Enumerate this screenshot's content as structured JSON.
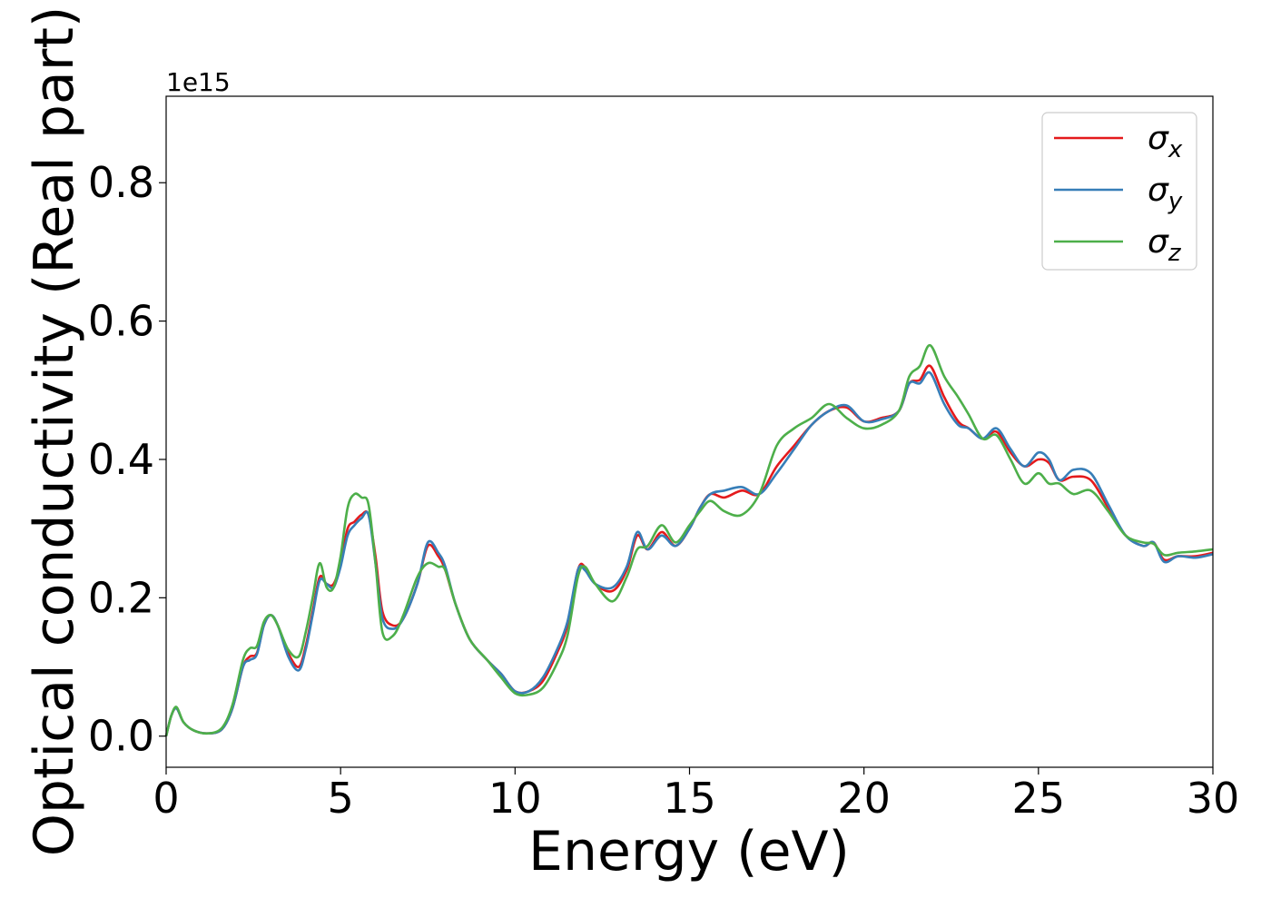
{
  "chart_data": {
    "type": "line",
    "title": "",
    "xlabel": "Energy (eV)",
    "ylabel": "Optical conductivity (Real part)",
    "y_offset_label": "1e15",
    "xlim": [
      0,
      30
    ],
    "ylim": [
      -0.045,
      0.925
    ],
    "x_ticks": [
      0,
      5,
      10,
      15,
      20,
      25,
      30
    ],
    "x_tick_labels": [
      "0",
      "5",
      "10",
      "15",
      "20",
      "25",
      "30"
    ],
    "y_ticks": [
      0.0,
      0.2,
      0.4,
      0.6,
      0.8
    ],
    "y_tick_labels": [
      "0.0",
      "0.2",
      "0.4",
      "0.6",
      "0.8"
    ],
    "grid": false,
    "legend": "top-right",
    "series": [
      {
        "name": "σx",
        "symbol": "σ",
        "subscript": "x",
        "color": "#e41a1c",
        "points": [
          [
            0,
            0
          ],
          [
            0.15,
            0.03
          ],
          [
            0.3,
            0.04
          ],
          [
            0.5,
            0.02
          ],
          [
            0.8,
            0.008
          ],
          [
            1.2,
            0.004
          ],
          [
            1.6,
            0.01
          ],
          [
            1.9,
            0.04
          ],
          [
            2.2,
            0.1
          ],
          [
            2.4,
            0.115
          ],
          [
            2.6,
            0.12
          ],
          [
            2.8,
            0.16
          ],
          [
            3.0,
            0.175
          ],
          [
            3.2,
            0.16
          ],
          [
            3.5,
            0.12
          ],
          [
            3.8,
            0.1
          ],
          [
            4.0,
            0.13
          ],
          [
            4.2,
            0.18
          ],
          [
            4.4,
            0.23
          ],
          [
            4.6,
            0.22
          ],
          [
            4.8,
            0.22
          ],
          [
            5.0,
            0.25
          ],
          [
            5.2,
            0.3
          ],
          [
            5.4,
            0.31
          ],
          [
            5.6,
            0.32
          ],
          [
            5.8,
            0.32
          ],
          [
            6.0,
            0.26
          ],
          [
            6.2,
            0.18
          ],
          [
            6.5,
            0.16
          ],
          [
            6.8,
            0.17
          ],
          [
            7.2,
            0.22
          ],
          [
            7.5,
            0.275
          ],
          [
            7.8,
            0.26
          ],
          [
            8.0,
            0.24
          ],
          [
            8.3,
            0.19
          ],
          [
            8.7,
            0.14
          ],
          [
            9.2,
            0.11
          ],
          [
            9.6,
            0.09
          ],
          [
            10.0,
            0.065
          ],
          [
            10.4,
            0.065
          ],
          [
            10.8,
            0.08
          ],
          [
            11.2,
            0.12
          ],
          [
            11.5,
            0.16
          ],
          [
            11.8,
            0.24
          ],
          [
            12.0,
            0.245
          ],
          [
            12.3,
            0.22
          ],
          [
            12.8,
            0.21
          ],
          [
            13.2,
            0.24
          ],
          [
            13.5,
            0.29
          ],
          [
            13.8,
            0.27
          ],
          [
            14.2,
            0.295
          ],
          [
            14.6,
            0.275
          ],
          [
            15.0,
            0.3
          ],
          [
            15.3,
            0.33
          ],
          [
            15.6,
            0.35
          ],
          [
            16.0,
            0.345
          ],
          [
            16.5,
            0.355
          ],
          [
            17.0,
            0.35
          ],
          [
            17.5,
            0.39
          ],
          [
            18.0,
            0.42
          ],
          [
            18.5,
            0.45
          ],
          [
            19.0,
            0.47
          ],
          [
            19.5,
            0.475
          ],
          [
            20.0,
            0.455
          ],
          [
            20.5,
            0.46
          ],
          [
            21.0,
            0.47
          ],
          [
            21.3,
            0.51
          ],
          [
            21.6,
            0.515
          ],
          [
            21.9,
            0.535
          ],
          [
            22.3,
            0.49
          ],
          [
            22.7,
            0.455
          ],
          [
            23.0,
            0.445
          ],
          [
            23.4,
            0.43
          ],
          [
            23.8,
            0.44
          ],
          [
            24.2,
            0.41
          ],
          [
            24.6,
            0.39
          ],
          [
            25.0,
            0.4
          ],
          [
            25.3,
            0.395
          ],
          [
            25.6,
            0.37
          ],
          [
            26.0,
            0.375
          ],
          [
            26.5,
            0.37
          ],
          [
            27.0,
            0.33
          ],
          [
            27.5,
            0.29
          ],
          [
            28.0,
            0.275
          ],
          [
            28.3,
            0.28
          ],
          [
            28.6,
            0.255
          ],
          [
            29.0,
            0.26
          ],
          [
            29.5,
            0.26
          ],
          [
            30.0,
            0.265
          ]
        ]
      },
      {
        "name": "σy",
        "symbol": "σ",
        "subscript": "y",
        "color": "#377eb8",
        "points": [
          [
            0,
            0
          ],
          [
            0.15,
            0.03
          ],
          [
            0.3,
            0.04
          ],
          [
            0.5,
            0.02
          ],
          [
            0.8,
            0.008
          ],
          [
            1.2,
            0.004
          ],
          [
            1.6,
            0.01
          ],
          [
            1.9,
            0.04
          ],
          [
            2.2,
            0.1
          ],
          [
            2.4,
            0.11
          ],
          [
            2.6,
            0.118
          ],
          [
            2.8,
            0.16
          ],
          [
            3.0,
            0.175
          ],
          [
            3.2,
            0.16
          ],
          [
            3.5,
            0.115
          ],
          [
            3.8,
            0.095
          ],
          [
            4.0,
            0.125
          ],
          [
            4.2,
            0.175
          ],
          [
            4.4,
            0.225
          ],
          [
            4.6,
            0.22
          ],
          [
            4.8,
            0.215
          ],
          [
            5.0,
            0.245
          ],
          [
            5.2,
            0.29
          ],
          [
            5.4,
            0.305
          ],
          [
            5.6,
            0.315
          ],
          [
            5.8,
            0.32
          ],
          [
            6.0,
            0.25
          ],
          [
            6.2,
            0.17
          ],
          [
            6.5,
            0.155
          ],
          [
            6.8,
            0.17
          ],
          [
            7.2,
            0.22
          ],
          [
            7.5,
            0.28
          ],
          [
            7.8,
            0.265
          ],
          [
            8.0,
            0.245
          ],
          [
            8.3,
            0.19
          ],
          [
            8.7,
            0.14
          ],
          [
            9.2,
            0.11
          ],
          [
            9.6,
            0.09
          ],
          [
            10.0,
            0.065
          ],
          [
            10.4,
            0.065
          ],
          [
            10.8,
            0.085
          ],
          [
            11.2,
            0.125
          ],
          [
            11.5,
            0.165
          ],
          [
            11.8,
            0.24
          ],
          [
            12.0,
            0.24
          ],
          [
            12.3,
            0.22
          ],
          [
            12.8,
            0.215
          ],
          [
            13.2,
            0.245
          ],
          [
            13.5,
            0.295
          ],
          [
            13.8,
            0.27
          ],
          [
            14.2,
            0.29
          ],
          [
            14.6,
            0.275
          ],
          [
            15.0,
            0.3
          ],
          [
            15.3,
            0.33
          ],
          [
            15.6,
            0.35
          ],
          [
            16.0,
            0.355
          ],
          [
            16.5,
            0.36
          ],
          [
            17.0,
            0.35
          ],
          [
            17.5,
            0.38
          ],
          [
            18.0,
            0.415
          ],
          [
            18.5,
            0.45
          ],
          [
            19.0,
            0.47
          ],
          [
            19.5,
            0.478
          ],
          [
            20.0,
            0.455
          ],
          [
            20.5,
            0.458
          ],
          [
            21.0,
            0.47
          ],
          [
            21.3,
            0.51
          ],
          [
            21.6,
            0.51
          ],
          [
            21.9,
            0.525
          ],
          [
            22.3,
            0.48
          ],
          [
            22.7,
            0.45
          ],
          [
            23.0,
            0.445
          ],
          [
            23.4,
            0.43
          ],
          [
            23.8,
            0.445
          ],
          [
            24.2,
            0.415
          ],
          [
            24.6,
            0.39
          ],
          [
            25.0,
            0.41
          ],
          [
            25.3,
            0.4
          ],
          [
            25.6,
            0.37
          ],
          [
            26.0,
            0.385
          ],
          [
            26.5,
            0.38
          ],
          [
            27.0,
            0.335
          ],
          [
            27.5,
            0.29
          ],
          [
            28.0,
            0.275
          ],
          [
            28.3,
            0.28
          ],
          [
            28.6,
            0.252
          ],
          [
            29.0,
            0.26
          ],
          [
            29.5,
            0.258
          ],
          [
            30.0,
            0.263
          ]
        ]
      },
      {
        "name": "σz",
        "symbol": "σ",
        "subscript": "z",
        "color": "#4daf4a",
        "points": [
          [
            0,
            0
          ],
          [
            0.15,
            0.03
          ],
          [
            0.3,
            0.042
          ],
          [
            0.5,
            0.02
          ],
          [
            0.8,
            0.008
          ],
          [
            1.2,
            0.004
          ],
          [
            1.6,
            0.012
          ],
          [
            1.9,
            0.045
          ],
          [
            2.2,
            0.11
          ],
          [
            2.4,
            0.127
          ],
          [
            2.6,
            0.13
          ],
          [
            2.8,
            0.165
          ],
          [
            3.0,
            0.175
          ],
          [
            3.2,
            0.16
          ],
          [
            3.5,
            0.125
          ],
          [
            3.8,
            0.115
          ],
          [
            4.0,
            0.15
          ],
          [
            4.2,
            0.2
          ],
          [
            4.4,
            0.25
          ],
          [
            4.6,
            0.215
          ],
          [
            4.8,
            0.215
          ],
          [
            5.0,
            0.26
          ],
          [
            5.2,
            0.33
          ],
          [
            5.4,
            0.35
          ],
          [
            5.6,
            0.345
          ],
          [
            5.8,
            0.335
          ],
          [
            6.0,
            0.25
          ],
          [
            6.2,
            0.15
          ],
          [
            6.5,
            0.145
          ],
          [
            6.8,
            0.175
          ],
          [
            7.2,
            0.23
          ],
          [
            7.5,
            0.25
          ],
          [
            7.8,
            0.245
          ],
          [
            8.0,
            0.24
          ],
          [
            8.3,
            0.19
          ],
          [
            8.7,
            0.14
          ],
          [
            9.2,
            0.11
          ],
          [
            9.6,
            0.085
          ],
          [
            10.0,
            0.062
          ],
          [
            10.4,
            0.06
          ],
          [
            10.8,
            0.07
          ],
          [
            11.2,
            0.105
          ],
          [
            11.5,
            0.145
          ],
          [
            11.8,
            0.23
          ],
          [
            12.0,
            0.245
          ],
          [
            12.3,
            0.22
          ],
          [
            12.8,
            0.195
          ],
          [
            13.2,
            0.23
          ],
          [
            13.5,
            0.27
          ],
          [
            13.8,
            0.275
          ],
          [
            14.2,
            0.305
          ],
          [
            14.6,
            0.28
          ],
          [
            15.0,
            0.305
          ],
          [
            15.3,
            0.325
          ],
          [
            15.6,
            0.34
          ],
          [
            16.0,
            0.325
          ],
          [
            16.5,
            0.32
          ],
          [
            17.0,
            0.35
          ],
          [
            17.5,
            0.42
          ],
          [
            18.0,
            0.445
          ],
          [
            18.5,
            0.46
          ],
          [
            19.0,
            0.48
          ],
          [
            19.5,
            0.46
          ],
          [
            20.0,
            0.445
          ],
          [
            20.5,
            0.45
          ],
          [
            21.0,
            0.47
          ],
          [
            21.3,
            0.52
          ],
          [
            21.6,
            0.535
          ],
          [
            21.9,
            0.565
          ],
          [
            22.3,
            0.52
          ],
          [
            22.7,
            0.49
          ],
          [
            23.0,
            0.465
          ],
          [
            23.4,
            0.43
          ],
          [
            23.8,
            0.435
          ],
          [
            24.2,
            0.4
          ],
          [
            24.6,
            0.365
          ],
          [
            25.0,
            0.38
          ],
          [
            25.3,
            0.365
          ],
          [
            25.6,
            0.365
          ],
          [
            26.0,
            0.35
          ],
          [
            26.5,
            0.355
          ],
          [
            27.0,
            0.325
          ],
          [
            27.5,
            0.29
          ],
          [
            28.0,
            0.28
          ],
          [
            28.3,
            0.278
          ],
          [
            28.6,
            0.262
          ],
          [
            29.0,
            0.265
          ],
          [
            29.5,
            0.267
          ],
          [
            30.0,
            0.27
          ]
        ]
      }
    ]
  }
}
